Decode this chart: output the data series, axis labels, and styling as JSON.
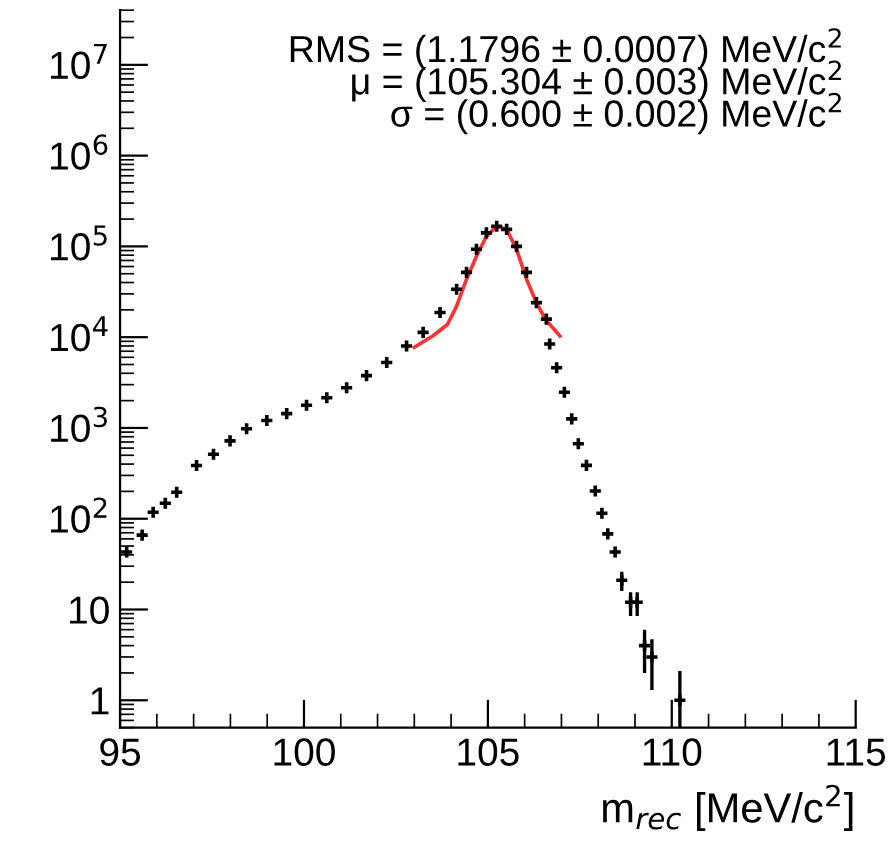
{
  "chart_data": {
    "type": "scatter",
    "xlabel": "m$_{rec}$ [MeV/c$^{2}$]",
    "annotations": [
      "RMS = (1.1796 ± 0.0007) MeV/c$^{2}$",
      "μ = (105.304 ± 0.003) MeV/c$^{2}$",
      "σ = (0.600 ± 0.002) MeV/c$^{2}$"
    ],
    "xlim": [
      95,
      115
    ],
    "xticks": [
      95,
      100,
      105,
      110,
      115
    ],
    "ylim": [
      0.5,
      40000000
    ],
    "yticks": [
      1,
      10,
      {
        "value": 100,
        "label": "10$^{2}$"
      },
      {
        "value": 1000,
        "label": "10$^{3}$"
      },
      {
        "value": 10000,
        "label": "10$^{4}$"
      },
      {
        "value": 100000,
        "label": "10$^{5}$"
      },
      {
        "value": 1000000,
        "label": "10$^{6}$"
      },
      {
        "value": 10000000,
        "label": "10$^{7}$"
      }
    ],
    "log": "y",
    "grid": false,
    "series": [
      {
        "color": "#000000",
        "marker": "cross",
        "x": [
          95.18,
          95.6,
          95.9,
          96.23,
          96.54,
          97.08,
          97.54,
          97.99,
          98.44,
          98.99,
          99.53,
          100.07,
          100.62,
          101.16,
          101.7,
          102.25,
          102.79,
          103.24,
          103.7,
          104.15,
          104.42,
          104.69,
          104.96,
          105.24,
          105.51,
          105.78,
          106.05,
          106.32,
          106.59,
          106.68,
          106.87,
          107.08,
          107.28,
          107.46,
          107.68,
          107.92,
          108.1,
          108.26,
          108.46,
          108.64,
          108.88,
          109.06,
          109.26,
          109.46,
          110.22
        ],
        "values": [
          43,
          66,
          118,
          148,
          196,
          386,
          513,
          720,
          980,
          1210,
          1440,
          1780,
          2150,
          2770,
          3770,
          5260,
          8000,
          11300,
          18700,
          33700,
          51700,
          93000,
          141000,
          167000,
          154000,
          100000,
          51700,
          24000,
          15800,
          8400,
          4600,
          2470,
          1260,
          670,
          387,
          202,
          115,
          68,
          43,
          21,
          12,
          12,
          4,
          3,
          1
        ],
        "errors": [
          null,
          null,
          null,
          null,
          null,
          null,
          null,
          null,
          null,
          null,
          null,
          null,
          null,
          null,
          null,
          null,
          null,
          null,
          null,
          null,
          null,
          null,
          null,
          null,
          null,
          null,
          null,
          null,
          null,
          null,
          null,
          null,
          null,
          null,
          null,
          null,
          null,
          null,
          null,
          5,
          3.5,
          3.5,
          2,
          1.7,
          [
            0.5,
            2.1
          ]
        ]
      },
      {
        "type": "line",
        "color": "#ff3333",
        "marker": "none",
        "line_style": "solid",
        "x": [
          103.0,
          103.5,
          103.9,
          104.15,
          104.42,
          104.69,
          104.96,
          105.24,
          105.51,
          105.78,
          106.05,
          106.32,
          106.56,
          106.96
        ],
        "values": [
          7760,
          10300,
          13800,
          22000,
          43500,
          78000,
          129000,
          167000,
          154000,
          93000,
          43500,
          24000,
          15800,
          10300
        ]
      }
    ]
  }
}
